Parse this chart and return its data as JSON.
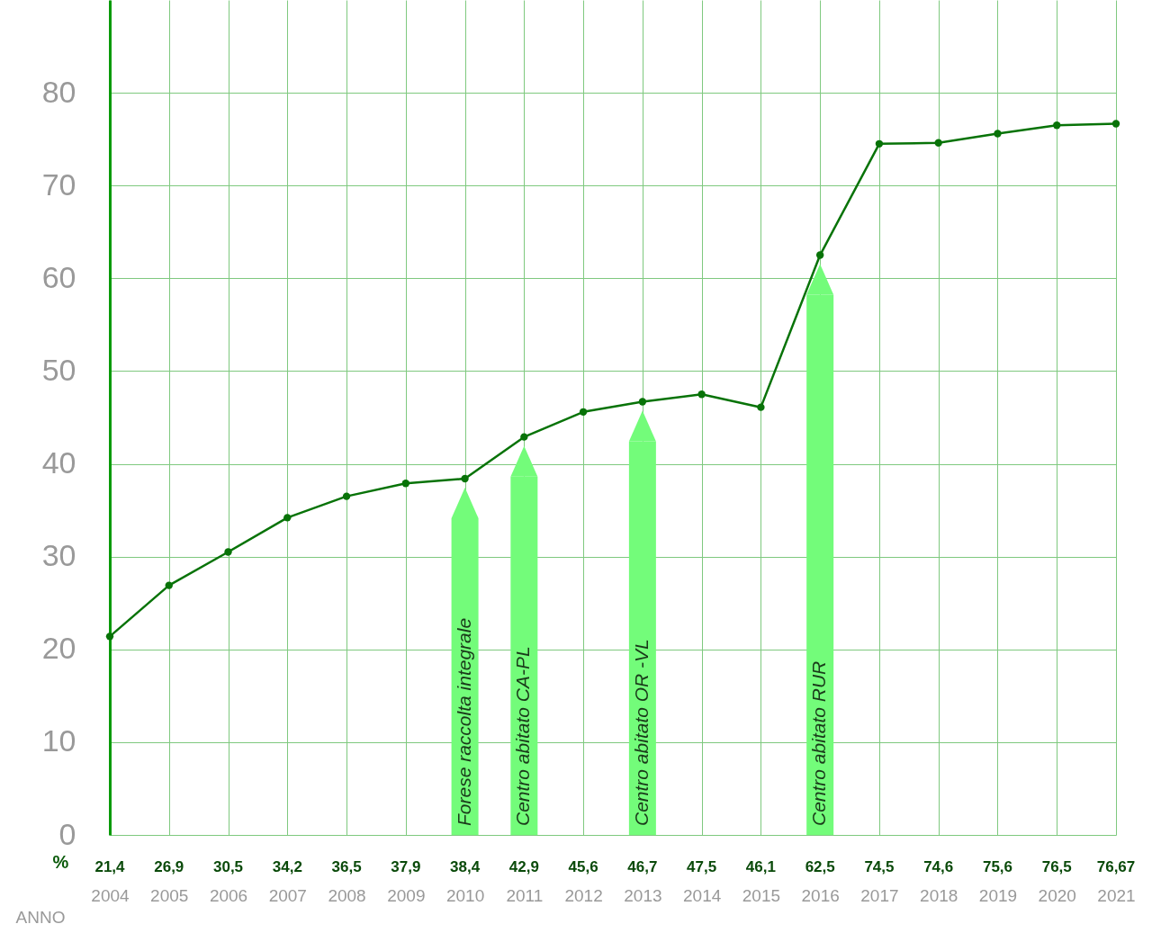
{
  "chart_data": {
    "type": "line",
    "xlabel": "ANNO",
    "ylabel": "%",
    "categories": [
      "2004",
      "2005",
      "2006",
      "2007",
      "2008",
      "2009",
      "2010",
      "2011",
      "2012",
      "2013",
      "2014",
      "2015",
      "2016",
      "2017",
      "2018",
      "2019",
      "2020",
      "2021"
    ],
    "series": [
      {
        "color": "#087308",
        "values": [
          21.4,
          26.9,
          30.5,
          34.2,
          36.5,
          37.9,
          38.4,
          42.9,
          45.6,
          46.7,
          47.5,
          46.1,
          62.5,
          74.5,
          74.6,
          75.6,
          76.5,
          76.67
        ],
        "value_labels": [
          "21,4",
          "26,9",
          "30,5",
          "34,2",
          "36,5",
          "37,9",
          "38,4",
          "42,9",
          "45,6",
          "46,7",
          "47,5",
          "46,1",
          "62,5",
          "74,5",
          "74,6",
          "75,6",
          "76,5",
          "76,67"
        ]
      }
    ],
    "ylim": [
      0,
      90
    ],
    "yticks": [
      0,
      10,
      20,
      30,
      40,
      50,
      60,
      70,
      80
    ],
    "grid": true,
    "marker": "circle",
    "line_style": "solid",
    "annotations": [
      {
        "text": "Forese raccolta integrale",
        "x": "2010"
      },
      {
        "text": "Centro abitato CA-PL",
        "x": "2011"
      },
      {
        "text": "Centro abitato OR -VL",
        "x": "2013"
      },
      {
        "text": "Centro abitato RUR",
        "x": "2016"
      }
    ]
  }
}
